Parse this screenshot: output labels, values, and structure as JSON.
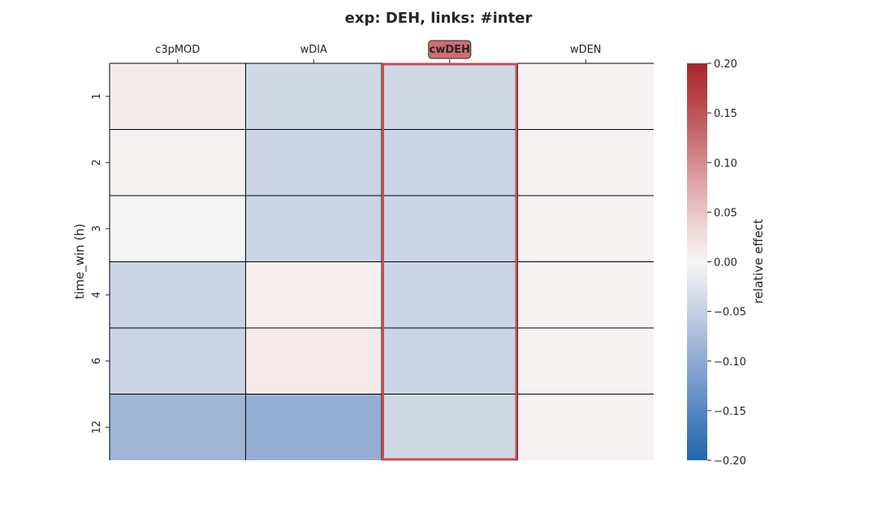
{
  "chart_data": {
    "type": "heatmap",
    "title": "exp: DEH, links: #inter",
    "xlabel": "",
    "ylabel": "time_win (h)",
    "x_categories": [
      "c3pMOD",
      "wDIA",
      "cwDEH",
      "wDEN"
    ],
    "y_categories": [
      "1",
      "2",
      "3",
      "4",
      "6",
      "12"
    ],
    "highlighted_column": "cwDEH",
    "values": [
      [
        0.01,
        -0.04,
        -0.04,
        0.003
      ],
      [
        0.004,
        -0.045,
        -0.045,
        0.003
      ],
      [
        -0.002,
        -0.045,
        -0.045,
        0.003
      ],
      [
        -0.045,
        0.006,
        -0.045,
        0.003
      ],
      [
        -0.045,
        0.013,
        -0.045,
        0.003
      ],
      [
        -0.085,
        -0.095,
        -0.04,
        0.003
      ]
    ],
    "colorbar": {
      "label": "relative effect",
      "range": [
        -0.2,
        0.2
      ],
      "ticks": [
        "0.20",
        "0.15",
        "0.10",
        "0.05",
        "0.00",
        "−0.05",
        "−0.10",
        "−0.15",
        "−0.20"
      ],
      "colormap": [
        "#2166ac",
        "#4a81bc",
        "#7a9ccb",
        "#a6b8d8",
        "#d0d8e6",
        "#f7f5f5",
        "#ecd0d0",
        "#dca4a6",
        "#c97479",
        "#b9474f",
        "#a5282b"
      ]
    },
    "highlight_color": "#c44e52",
    "grid_line_color": "#000000"
  }
}
